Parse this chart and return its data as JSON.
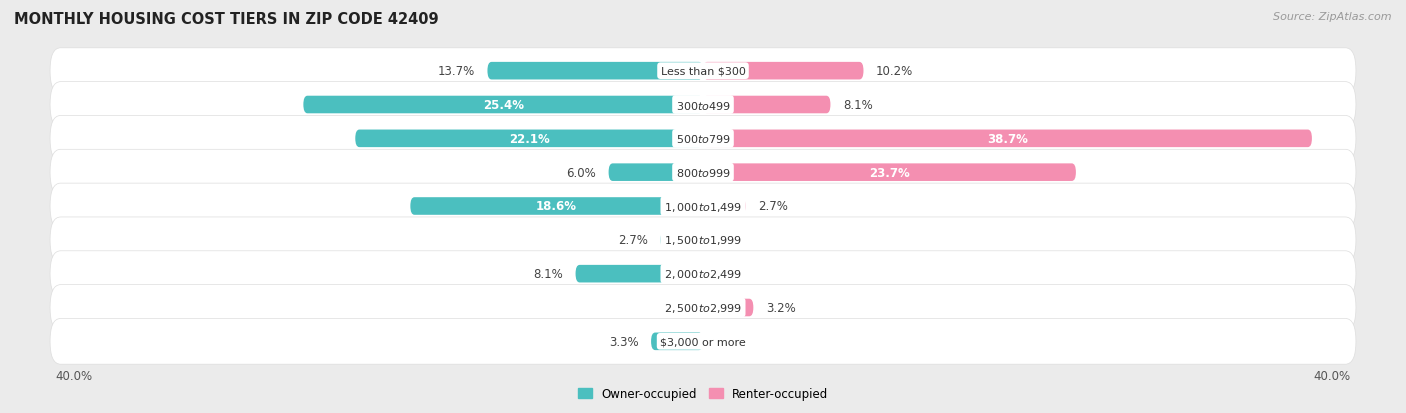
{
  "title": "MONTHLY HOUSING COST TIERS IN ZIP CODE 42409",
  "source": "Source: ZipAtlas.com",
  "categories": [
    "Less than $300",
    "$300 to $499",
    "$500 to $799",
    "$800 to $999",
    "$1,000 to $1,499",
    "$1,500 to $1,999",
    "$2,000 to $2,499",
    "$2,500 to $2,999",
    "$3,000 or more"
  ],
  "owner_values": [
    13.7,
    25.4,
    22.1,
    6.0,
    18.6,
    2.7,
    8.1,
    0.0,
    3.3
  ],
  "renter_values": [
    10.2,
    8.1,
    38.7,
    23.7,
    2.7,
    0.0,
    0.0,
    3.2,
    0.0
  ],
  "owner_color": "#4bbfbf",
  "renter_color": "#f48fb1",
  "owner_label": "Owner-occupied",
  "renter_label": "Renter-occupied",
  "axis_max": 40.0,
  "bg_color": "#ebebeb",
  "row_bg_color": "#f7f7f7",
  "bar_bg_color": "#ffffff",
  "title_fontsize": 10.5,
  "label_fontsize": 8.5,
  "tick_fontsize": 8.5,
  "source_fontsize": 8,
  "cat_label_fontsize": 8
}
